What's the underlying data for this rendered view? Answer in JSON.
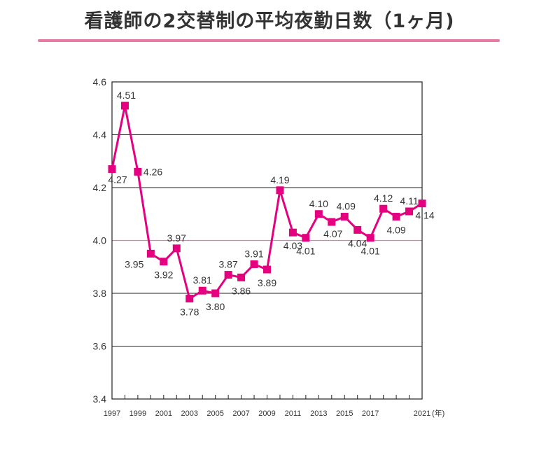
{
  "page": {
    "title": "看護師の2交替制の平均夜勤日数（1ヶ月)",
    "accent_color": "#e87aa6"
  },
  "chart_data": {
    "type": "line",
    "title": "",
    "xlabel": "",
    "ylabel": "",
    "x_unit_label": "(年)",
    "ylim": [
      3.4,
      4.6
    ],
    "yticks": [
      "3.4",
      "3.6",
      "3.8",
      "4.0",
      "4.2",
      "4.4",
      "4.6"
    ],
    "xticks": [
      "1997",
      "1999",
      "2001",
      "2003",
      "2005",
      "2007",
      "2009",
      "2011",
      "2013",
      "2015",
      "2017",
      "2021"
    ],
    "xlim": [
      1997,
      2021
    ],
    "reference_line": 4.0,
    "line_color": "#e4007f",
    "grid": true,
    "series": [
      {
        "x": [
          1997,
          1998,
          1999,
          2000,
          2001,
          2002,
          2003,
          2004,
          2005,
          2006,
          2007,
          2008,
          2009,
          2010,
          2011,
          2012,
          2013,
          2014,
          2015,
          2016,
          2017,
          2018,
          2019,
          2020,
          2021
        ],
        "values": [
          4.27,
          4.51,
          4.26,
          3.95,
          3.92,
          3.97,
          3.78,
          3.81,
          3.8,
          3.87,
          3.86,
          3.91,
          3.89,
          4.19,
          4.03,
          4.01,
          4.1,
          4.07,
          4.09,
          4.04,
          4.01,
          4.12,
          4.09,
          4.11,
          4.14
        ],
        "labels": [
          "4.27",
          "4.51",
          "4.26",
          "3.95",
          "3.92",
          "3.97",
          "3.78",
          "3.81",
          "3.80",
          "3.87",
          "3.86",
          "3.91",
          "3.89",
          "4.19",
          "4.03",
          "4.01",
          "4.10",
          "4.07",
          "4.09",
          "4.04",
          "4.01",
          "4.12",
          "4.09",
          "4.11",
          "4.14"
        ]
      }
    ]
  }
}
